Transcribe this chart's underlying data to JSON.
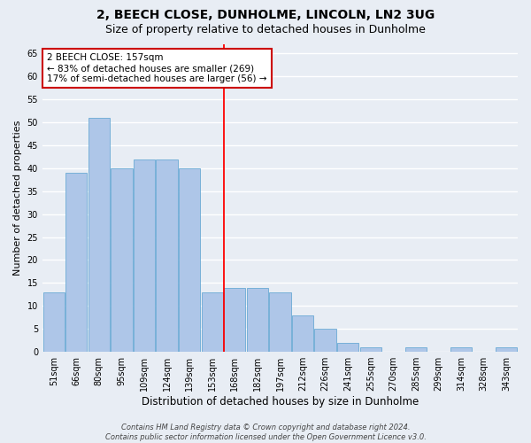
{
  "title": "2, BEECH CLOSE, DUNHOLME, LINCOLN, LN2 3UG",
  "subtitle": "Size of property relative to detached houses in Dunholme",
  "xlabel": "Distribution of detached houses by size in Dunholme",
  "ylabel": "Number of detached properties",
  "categories": [
    "51sqm",
    "66sqm",
    "80sqm",
    "95sqm",
    "109sqm",
    "124sqm",
    "139sqm",
    "153sqm",
    "168sqm",
    "182sqm",
    "197sqm",
    "212sqm",
    "226sqm",
    "241sqm",
    "255sqm",
    "270sqm",
    "285sqm",
    "299sqm",
    "314sqm",
    "328sqm",
    "343sqm"
  ],
  "values": [
    13,
    39,
    51,
    40,
    42,
    42,
    40,
    13,
    14,
    14,
    13,
    8,
    5,
    2,
    1,
    0,
    1,
    0,
    1,
    0,
    1
  ],
  "bar_color": "#aec6e8",
  "bar_edge_color": "#6aaad4",
  "background_color": "#e8edf4",
  "grid_color": "#ffffff",
  "ylim": [
    0,
    67
  ],
  "yticks": [
    0,
    5,
    10,
    15,
    20,
    25,
    30,
    35,
    40,
    45,
    50,
    55,
    60,
    65
  ],
  "red_line_x": 7.5,
  "annotation_text": "2 BEECH CLOSE: 157sqm\n← 83% of detached houses are smaller (269)\n17% of semi-detached houses are larger (56) →",
  "annotation_box_color": "#ffffff",
  "annotation_box_edge_color": "#cc0000",
  "footer_line1": "Contains HM Land Registry data © Crown copyright and database right 2024.",
  "footer_line2": "Contains public sector information licensed under the Open Government Licence v3.0.",
  "title_fontsize": 10,
  "subtitle_fontsize": 9,
  "tick_fontsize": 7,
  "ylabel_fontsize": 8,
  "xlabel_fontsize": 8.5,
  "footer_fontsize": 6
}
